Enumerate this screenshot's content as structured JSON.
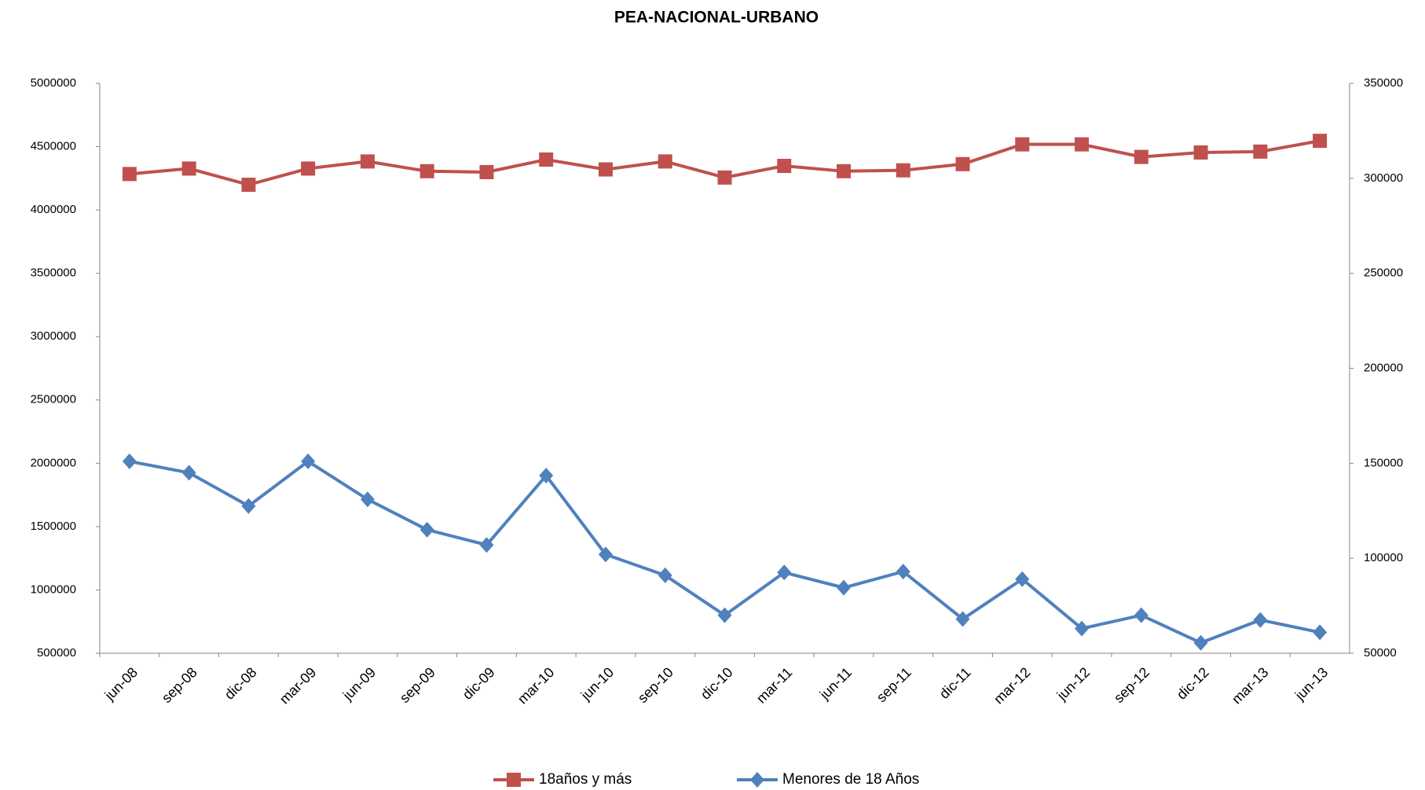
{
  "chart_data": {
    "type": "line",
    "title": "PEA-NACIONAL-URBANO",
    "categories": [
      "jun-08",
      "sep-08",
      "dic-08",
      "mar-09",
      "jun-09",
      "sep-09",
      "dic-09",
      "mar-10",
      "jun-10",
      "sep-10",
      "dic-10",
      "mar-11",
      "jun-11",
      "sep-11",
      "dic-11",
      "mar-12",
      "jun-12",
      "sep-12",
      "dic-12",
      "mar-13",
      "jun-13"
    ],
    "series": [
      {
        "name": "18años y más",
        "color": "#c0504d",
        "marker": "square",
        "values": [
          4284000,
          4327000,
          4199000,
          4327000,
          4383000,
          4306000,
          4299000,
          4398000,
          4320000,
          4383000,
          4256000,
          4348000,
          4306000,
          4313000,
          4362000,
          4518000,
          4518000,
          4419000,
          4454000,
          4461000,
          4546000
        ]
      },
      {
        "name": "Menores de 18 Años",
        "color": "#4f81bd",
        "marker": "diamond",
        "axis": "y2",
        "values": [
          151000,
          145000,
          127500,
          151000,
          131000,
          115000,
          107000,
          143500,
          102000,
          91000,
          70000,
          92500,
          84500,
          93000,
          68000,
          89000,
          63000,
          70000,
          55500,
          67500,
          61000
        ]
      }
    ],
    "ylim": [
      500000,
      5000000
    ],
    "yticks": [
      500000,
      1000000,
      1500000,
      2000000,
      2500000,
      3000000,
      3500000,
      4000000,
      4500000,
      5000000
    ],
    "y2lim": [
      50000,
      350000
    ],
    "y2ticks": [
      50000,
      100000,
      150000,
      200000,
      250000,
      300000,
      350000
    ],
    "legend": "bottom"
  }
}
